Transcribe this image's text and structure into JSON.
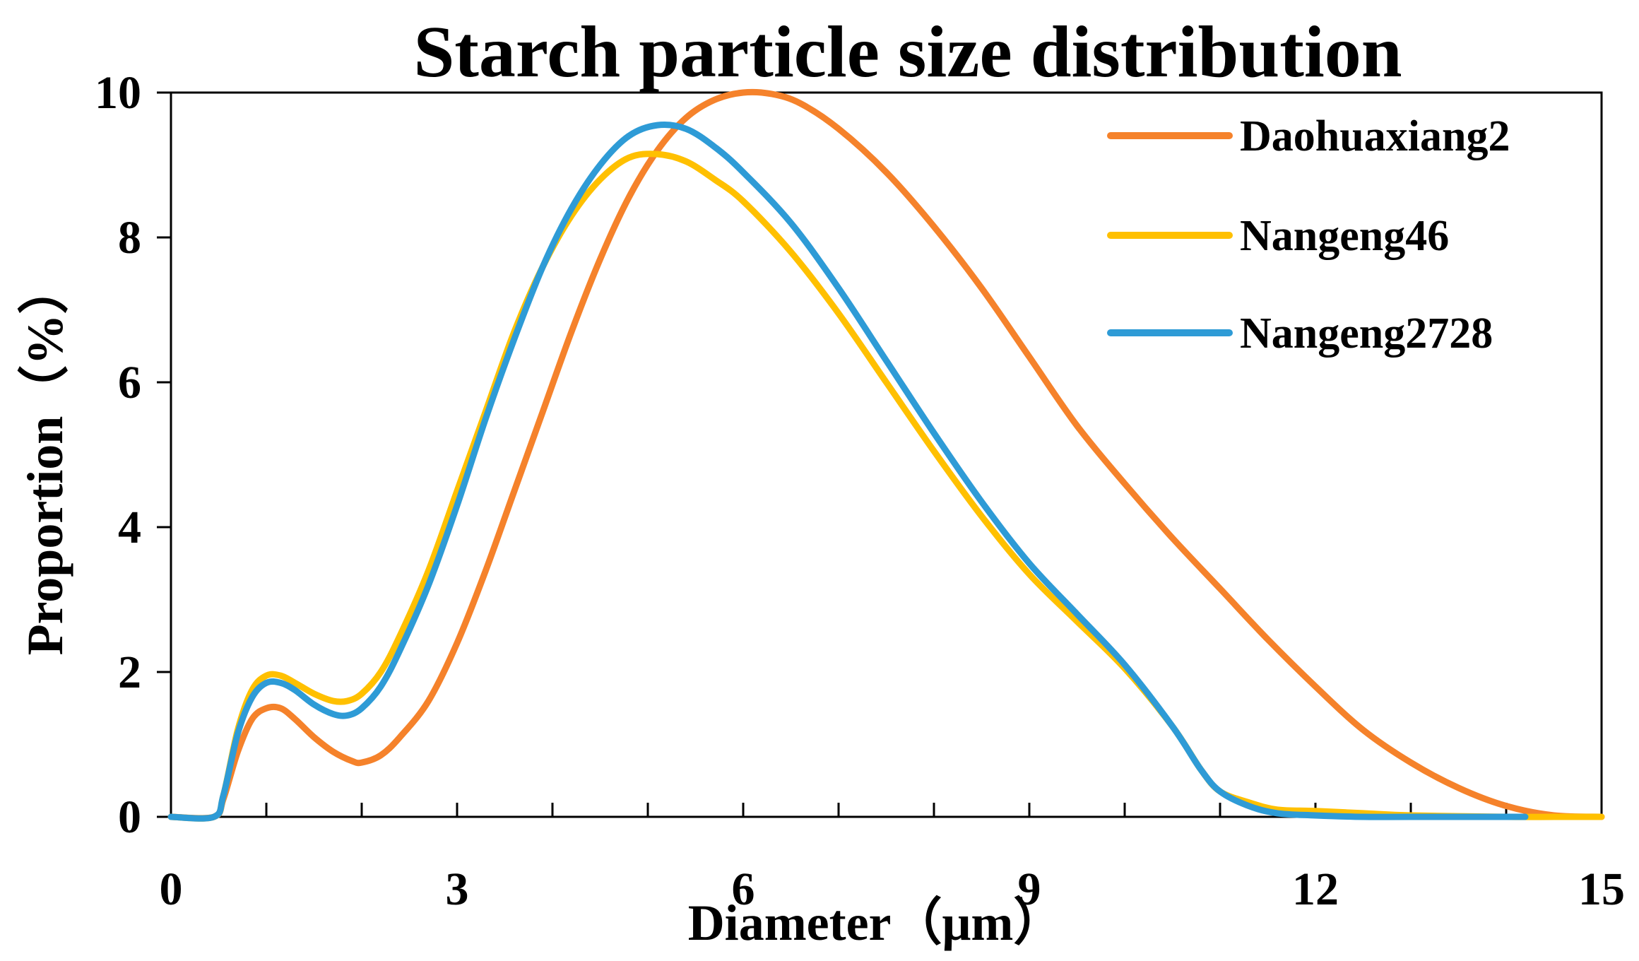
{
  "chart_data": {
    "type": "line",
    "title": "Starch particle size distribution",
    "xlabel": "Diameter（μm）",
    "ylabel": "Proportion（%）",
    "xlim": [
      0,
      15
    ],
    "ylim": [
      0,
      10
    ],
    "x_ticks": [
      0,
      3,
      6,
      9,
      12,
      15
    ],
    "x_minor_ticks": [
      1,
      2,
      4,
      5,
      7,
      8,
      10,
      11,
      13,
      14
    ],
    "y_ticks": [
      0,
      2,
      4,
      6,
      8,
      10
    ],
    "grid": false,
    "legend_position": "top-right",
    "series": [
      {
        "name": "Daohuaxiang2",
        "color": "#F5822B",
        "points": [
          [
            0,
            0
          ],
          [
            0.45,
            0
          ],
          [
            0.55,
            0.25
          ],
          [
            0.7,
            0.9
          ],
          [
            0.85,
            1.35
          ],
          [
            1.0,
            1.5
          ],
          [
            1.15,
            1.5
          ],
          [
            1.3,
            1.35
          ],
          [
            1.5,
            1.1
          ],
          [
            1.7,
            0.9
          ],
          [
            1.9,
            0.77
          ],
          [
            2.0,
            0.75
          ],
          [
            2.2,
            0.85
          ],
          [
            2.4,
            1.1
          ],
          [
            2.7,
            1.6
          ],
          [
            3.0,
            2.4
          ],
          [
            3.3,
            3.4
          ],
          [
            3.6,
            4.5
          ],
          [
            3.9,
            5.6
          ],
          [
            4.2,
            6.7
          ],
          [
            4.5,
            7.7
          ],
          [
            4.8,
            8.55
          ],
          [
            5.1,
            9.2
          ],
          [
            5.4,
            9.65
          ],
          [
            5.7,
            9.9
          ],
          [
            6.0,
            10.0
          ],
          [
            6.3,
            9.98
          ],
          [
            6.6,
            9.85
          ],
          [
            7.0,
            9.5
          ],
          [
            7.5,
            8.9
          ],
          [
            8.0,
            8.15
          ],
          [
            8.5,
            7.3
          ],
          [
            9.0,
            6.35
          ],
          [
            9.5,
            5.4
          ],
          [
            10.0,
            4.6
          ],
          [
            10.5,
            3.85
          ],
          [
            11.0,
            3.15
          ],
          [
            11.5,
            2.45
          ],
          [
            12.0,
            1.8
          ],
          [
            12.5,
            1.2
          ],
          [
            13.0,
            0.75
          ],
          [
            13.5,
            0.4
          ],
          [
            14.0,
            0.15
          ],
          [
            14.5,
            0.02
          ],
          [
            15.0,
            0
          ]
        ]
      },
      {
        "name": "Nangeng46",
        "color": "#FFC000",
        "points": [
          [
            0,
            0
          ],
          [
            0.45,
            0
          ],
          [
            0.55,
            0.3
          ],
          [
            0.7,
            1.2
          ],
          [
            0.85,
            1.75
          ],
          [
            1.0,
            1.95
          ],
          [
            1.15,
            1.95
          ],
          [
            1.3,
            1.85
          ],
          [
            1.5,
            1.7
          ],
          [
            1.7,
            1.6
          ],
          [
            1.85,
            1.6
          ],
          [
            2.0,
            1.7
          ],
          [
            2.2,
            2.0
          ],
          [
            2.4,
            2.5
          ],
          [
            2.7,
            3.4
          ],
          [
            3.0,
            4.5
          ],
          [
            3.3,
            5.6
          ],
          [
            3.6,
            6.7
          ],
          [
            3.9,
            7.6
          ],
          [
            4.2,
            8.3
          ],
          [
            4.5,
            8.8
          ],
          [
            4.8,
            9.1
          ],
          [
            5.1,
            9.15
          ],
          [
            5.4,
            9.05
          ],
          [
            5.7,
            8.8
          ],
          [
            6.0,
            8.5
          ],
          [
            6.5,
            7.8
          ],
          [
            7.0,
            6.95
          ],
          [
            7.5,
            6.0
          ],
          [
            8.0,
            5.05
          ],
          [
            8.5,
            4.15
          ],
          [
            9.0,
            3.35
          ],
          [
            9.5,
            2.7
          ],
          [
            10.0,
            2.05
          ],
          [
            10.5,
            1.25
          ],
          [
            10.8,
            0.65
          ],
          [
            11.0,
            0.35
          ],
          [
            11.3,
            0.2
          ],
          [
            11.6,
            0.1
          ],
          [
            12.0,
            0.08
          ],
          [
            12.5,
            0.05
          ],
          [
            13.0,
            0.02
          ],
          [
            14.0,
            0
          ],
          [
            14.5,
            0
          ],
          [
            15.0,
            0
          ]
        ]
      },
      {
        "name": "Nangeng2728",
        "color": "#2E9BD6",
        "points": [
          [
            0,
            0
          ],
          [
            0.45,
            0
          ],
          [
            0.55,
            0.3
          ],
          [
            0.7,
            1.15
          ],
          [
            0.85,
            1.65
          ],
          [
            1.0,
            1.85
          ],
          [
            1.15,
            1.85
          ],
          [
            1.3,
            1.75
          ],
          [
            1.5,
            1.55
          ],
          [
            1.7,
            1.42
          ],
          [
            1.85,
            1.4
          ],
          [
            2.0,
            1.5
          ],
          [
            2.2,
            1.8
          ],
          [
            2.4,
            2.3
          ],
          [
            2.7,
            3.2
          ],
          [
            3.0,
            4.3
          ],
          [
            3.3,
            5.5
          ],
          [
            3.6,
            6.6
          ],
          [
            3.9,
            7.6
          ],
          [
            4.2,
            8.4
          ],
          [
            4.5,
            9.0
          ],
          [
            4.8,
            9.4
          ],
          [
            5.1,
            9.55
          ],
          [
            5.4,
            9.5
          ],
          [
            5.7,
            9.25
          ],
          [
            6.0,
            8.9
          ],
          [
            6.5,
            8.2
          ],
          [
            7.0,
            7.3
          ],
          [
            7.5,
            6.3
          ],
          [
            8.0,
            5.3
          ],
          [
            8.5,
            4.35
          ],
          [
            9.0,
            3.5
          ],
          [
            9.5,
            2.8
          ],
          [
            10.0,
            2.1
          ],
          [
            10.5,
            1.25
          ],
          [
            10.8,
            0.65
          ],
          [
            11.0,
            0.35
          ],
          [
            11.3,
            0.15
          ],
          [
            11.6,
            0.05
          ],
          [
            12.0,
            0.02
          ],
          [
            12.5,
            0
          ],
          [
            13.0,
            0
          ],
          [
            14.2,
            0
          ]
        ]
      }
    ]
  }
}
